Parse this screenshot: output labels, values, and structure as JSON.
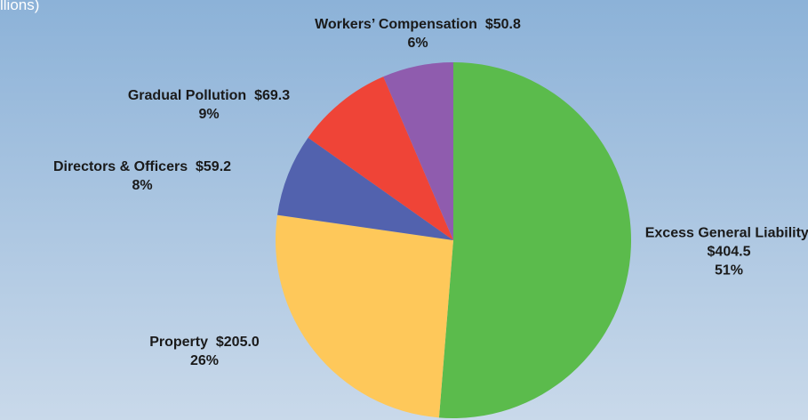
{
  "chart_data": {
    "type": "pie",
    "subtitle": "llions)",
    "categories": [
      "Excess General Liability",
      "Property",
      "Directors & Officers",
      "Gradual Pollution",
      "Workers’ Compensation"
    ],
    "values": [
      404.5,
      205.0,
      59.2,
      69.3,
      50.8
    ],
    "value_labels": [
      "$404.5",
      "$205.0",
      "$59.2",
      "$69.3",
      "$50.8"
    ],
    "percent_labels": [
      "51%",
      "26%",
      "8%",
      "9%",
      "6%"
    ],
    "colors": [
      "#5bbb4c",
      "#fec85a",
      "#5262ae",
      "#ef4437",
      "#8f5cae"
    ]
  }
}
